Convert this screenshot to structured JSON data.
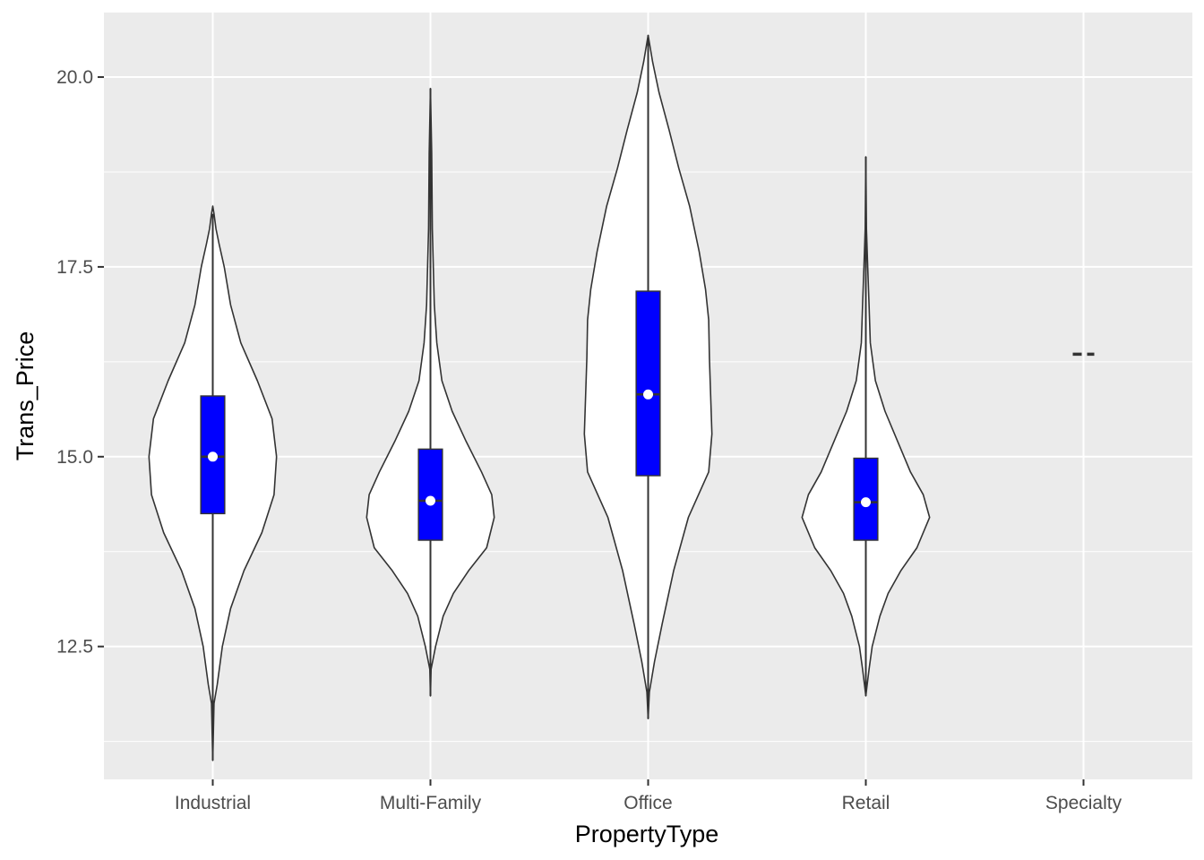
{
  "chart_data": {
    "type": "violin",
    "xlabel": "PropertyType",
    "ylabel": "Trans_Price",
    "categories": [
      "Industrial",
      "Multi-Family",
      "Office",
      "Retail",
      "Specialty"
    ],
    "ylim": [
      10.75,
      20.85
    ],
    "y_ticks": [
      12.5,
      15.0,
      17.5,
      20.0
    ],
    "y_tick_labels": [
      "12.5",
      "15.0",
      "17.5",
      "20.0"
    ],
    "grid": true,
    "colors": {
      "panel": "#ebebeb",
      "grid": "#ffffff",
      "violin_fill": "#ffffff",
      "violin_outline": "#333333",
      "box_fill": "#0000ff",
      "mean_point": "#ffffff"
    },
    "series": [
      {
        "name": "Industrial",
        "min": 11.0,
        "max": 18.3,
        "q1": 14.25,
        "median": 15.0,
        "q3": 15.8,
        "mean": 15.0,
        "whisker_low": 11.0,
        "whisker_high": 18.2,
        "density_profile": [
          [
            11.0,
            0.0
          ],
          [
            11.75,
            0.02
          ],
          [
            12.0,
            0.07
          ],
          [
            12.5,
            0.15
          ],
          [
            13.0,
            0.28
          ],
          [
            13.5,
            0.49
          ],
          [
            14.0,
            0.77
          ],
          [
            14.5,
            0.96
          ],
          [
            15.0,
            1.0
          ],
          [
            15.5,
            0.93
          ],
          [
            16.0,
            0.7
          ],
          [
            16.5,
            0.44
          ],
          [
            17.0,
            0.28
          ],
          [
            17.5,
            0.18
          ],
          [
            17.8,
            0.1
          ],
          [
            18.0,
            0.05
          ],
          [
            18.2,
            0.02
          ],
          [
            18.3,
            0.0
          ]
        ]
      },
      {
        "name": "Multi-Family",
        "min": 11.85,
        "max": 19.85,
        "q1": 13.9,
        "median": 14.42,
        "q3": 15.1,
        "mean": 14.42,
        "whisker_low": 11.85,
        "whisker_high": 19.85,
        "density_profile": [
          [
            11.85,
            0.0
          ],
          [
            12.2,
            0.01
          ],
          [
            12.5,
            0.08
          ],
          [
            12.9,
            0.2
          ],
          [
            13.2,
            0.36
          ],
          [
            13.5,
            0.6
          ],
          [
            13.8,
            0.88
          ],
          [
            14.2,
            1.0
          ],
          [
            14.5,
            0.96
          ],
          [
            14.8,
            0.8
          ],
          [
            15.2,
            0.56
          ],
          [
            15.6,
            0.34
          ],
          [
            16.0,
            0.18
          ],
          [
            16.5,
            0.1
          ],
          [
            17.0,
            0.06
          ],
          [
            18.0,
            0.03
          ],
          [
            19.0,
            0.02
          ],
          [
            19.85,
            0.0
          ]
        ]
      },
      {
        "name": "Office",
        "min": 11.55,
        "max": 20.55,
        "q1": 14.75,
        "median": 15.82,
        "q3": 17.18,
        "mean": 15.82,
        "whisker_low": 11.55,
        "whisker_high": 20.55,
        "density_profile": [
          [
            11.55,
            0.0
          ],
          [
            11.9,
            0.02
          ],
          [
            12.3,
            0.1
          ],
          [
            12.8,
            0.22
          ],
          [
            13.5,
            0.4
          ],
          [
            14.2,
            0.63
          ],
          [
            14.8,
            0.95
          ],
          [
            15.3,
            1.0
          ],
          [
            15.8,
            0.98
          ],
          [
            16.3,
            0.96
          ],
          [
            16.8,
            0.95
          ],
          [
            17.2,
            0.9
          ],
          [
            17.7,
            0.8
          ],
          [
            18.3,
            0.65
          ],
          [
            18.8,
            0.48
          ],
          [
            19.3,
            0.33
          ],
          [
            19.8,
            0.17
          ],
          [
            20.2,
            0.07
          ],
          [
            20.55,
            0.0
          ]
        ]
      },
      {
        "name": "Retail",
        "min": 11.85,
        "max": 18.95,
        "q1": 13.9,
        "median": 14.4,
        "q3": 14.98,
        "mean": 14.4,
        "whisker_low": 11.85,
        "whisker_high": 18.95,
        "density_profile": [
          [
            11.85,
            0.0
          ],
          [
            12.2,
            0.05
          ],
          [
            12.5,
            0.1
          ],
          [
            12.9,
            0.22
          ],
          [
            13.2,
            0.35
          ],
          [
            13.5,
            0.55
          ],
          [
            13.8,
            0.8
          ],
          [
            14.2,
            1.0
          ],
          [
            14.5,
            0.9
          ],
          [
            14.8,
            0.7
          ],
          [
            15.2,
            0.5
          ],
          [
            15.6,
            0.3
          ],
          [
            16.0,
            0.15
          ],
          [
            16.5,
            0.07
          ],
          [
            17.0,
            0.05
          ],
          [
            17.5,
            0.03
          ],
          [
            18.0,
            0.01
          ],
          [
            18.95,
            0.0
          ]
        ]
      },
      {
        "name": "Specialty",
        "min": 16.35,
        "max": 16.35,
        "q1": 16.35,
        "median": 16.35,
        "q3": 16.35,
        "mean": 16.35,
        "whisker_low": 16.35,
        "whisker_high": 16.35,
        "density_profile": []
      }
    ]
  }
}
